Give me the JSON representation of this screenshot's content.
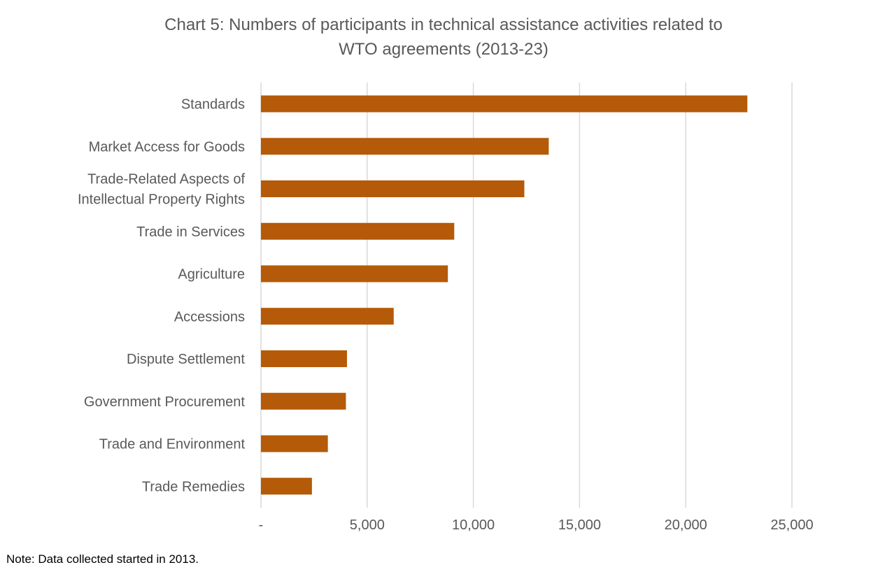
{
  "chart_data": {
    "type": "bar",
    "orientation": "horizontal",
    "title_lines": [
      "Chart 5: Numbers of participants in technical assistance activities related to",
      "WTO agreements (2013-23)"
    ],
    "categories": [
      [
        "Standards"
      ],
      [
        "Market Access for Goods"
      ],
      [
        "Trade-Related Aspects of",
        "Intellectual Property Rights"
      ],
      [
        "Trade in Services"
      ],
      [
        "Agriculture"
      ],
      [
        "Accessions"
      ],
      [
        "Dispute Settlement"
      ],
      [
        "Government Procurement"
      ],
      [
        "Trade and Environment"
      ],
      [
        "Trade Remedies"
      ]
    ],
    "values": [
      22900,
      13550,
      12400,
      9100,
      8800,
      6250,
      4050,
      4000,
      3150,
      2400
    ],
    "xlim": [
      0,
      25000
    ],
    "xticks": [
      0,
      5000,
      10000,
      15000,
      20000,
      25000
    ],
    "xtick_labels": [
      "-",
      "5,000",
      "10,000",
      "15,000",
      "20,000",
      "25,000"
    ],
    "grid": "vertical",
    "legend": "none",
    "bar_color": "#B55A08",
    "grid_color": "#D9D9D9",
    "text_color": "#595959"
  },
  "note": "Note: Data collected started in 2013."
}
